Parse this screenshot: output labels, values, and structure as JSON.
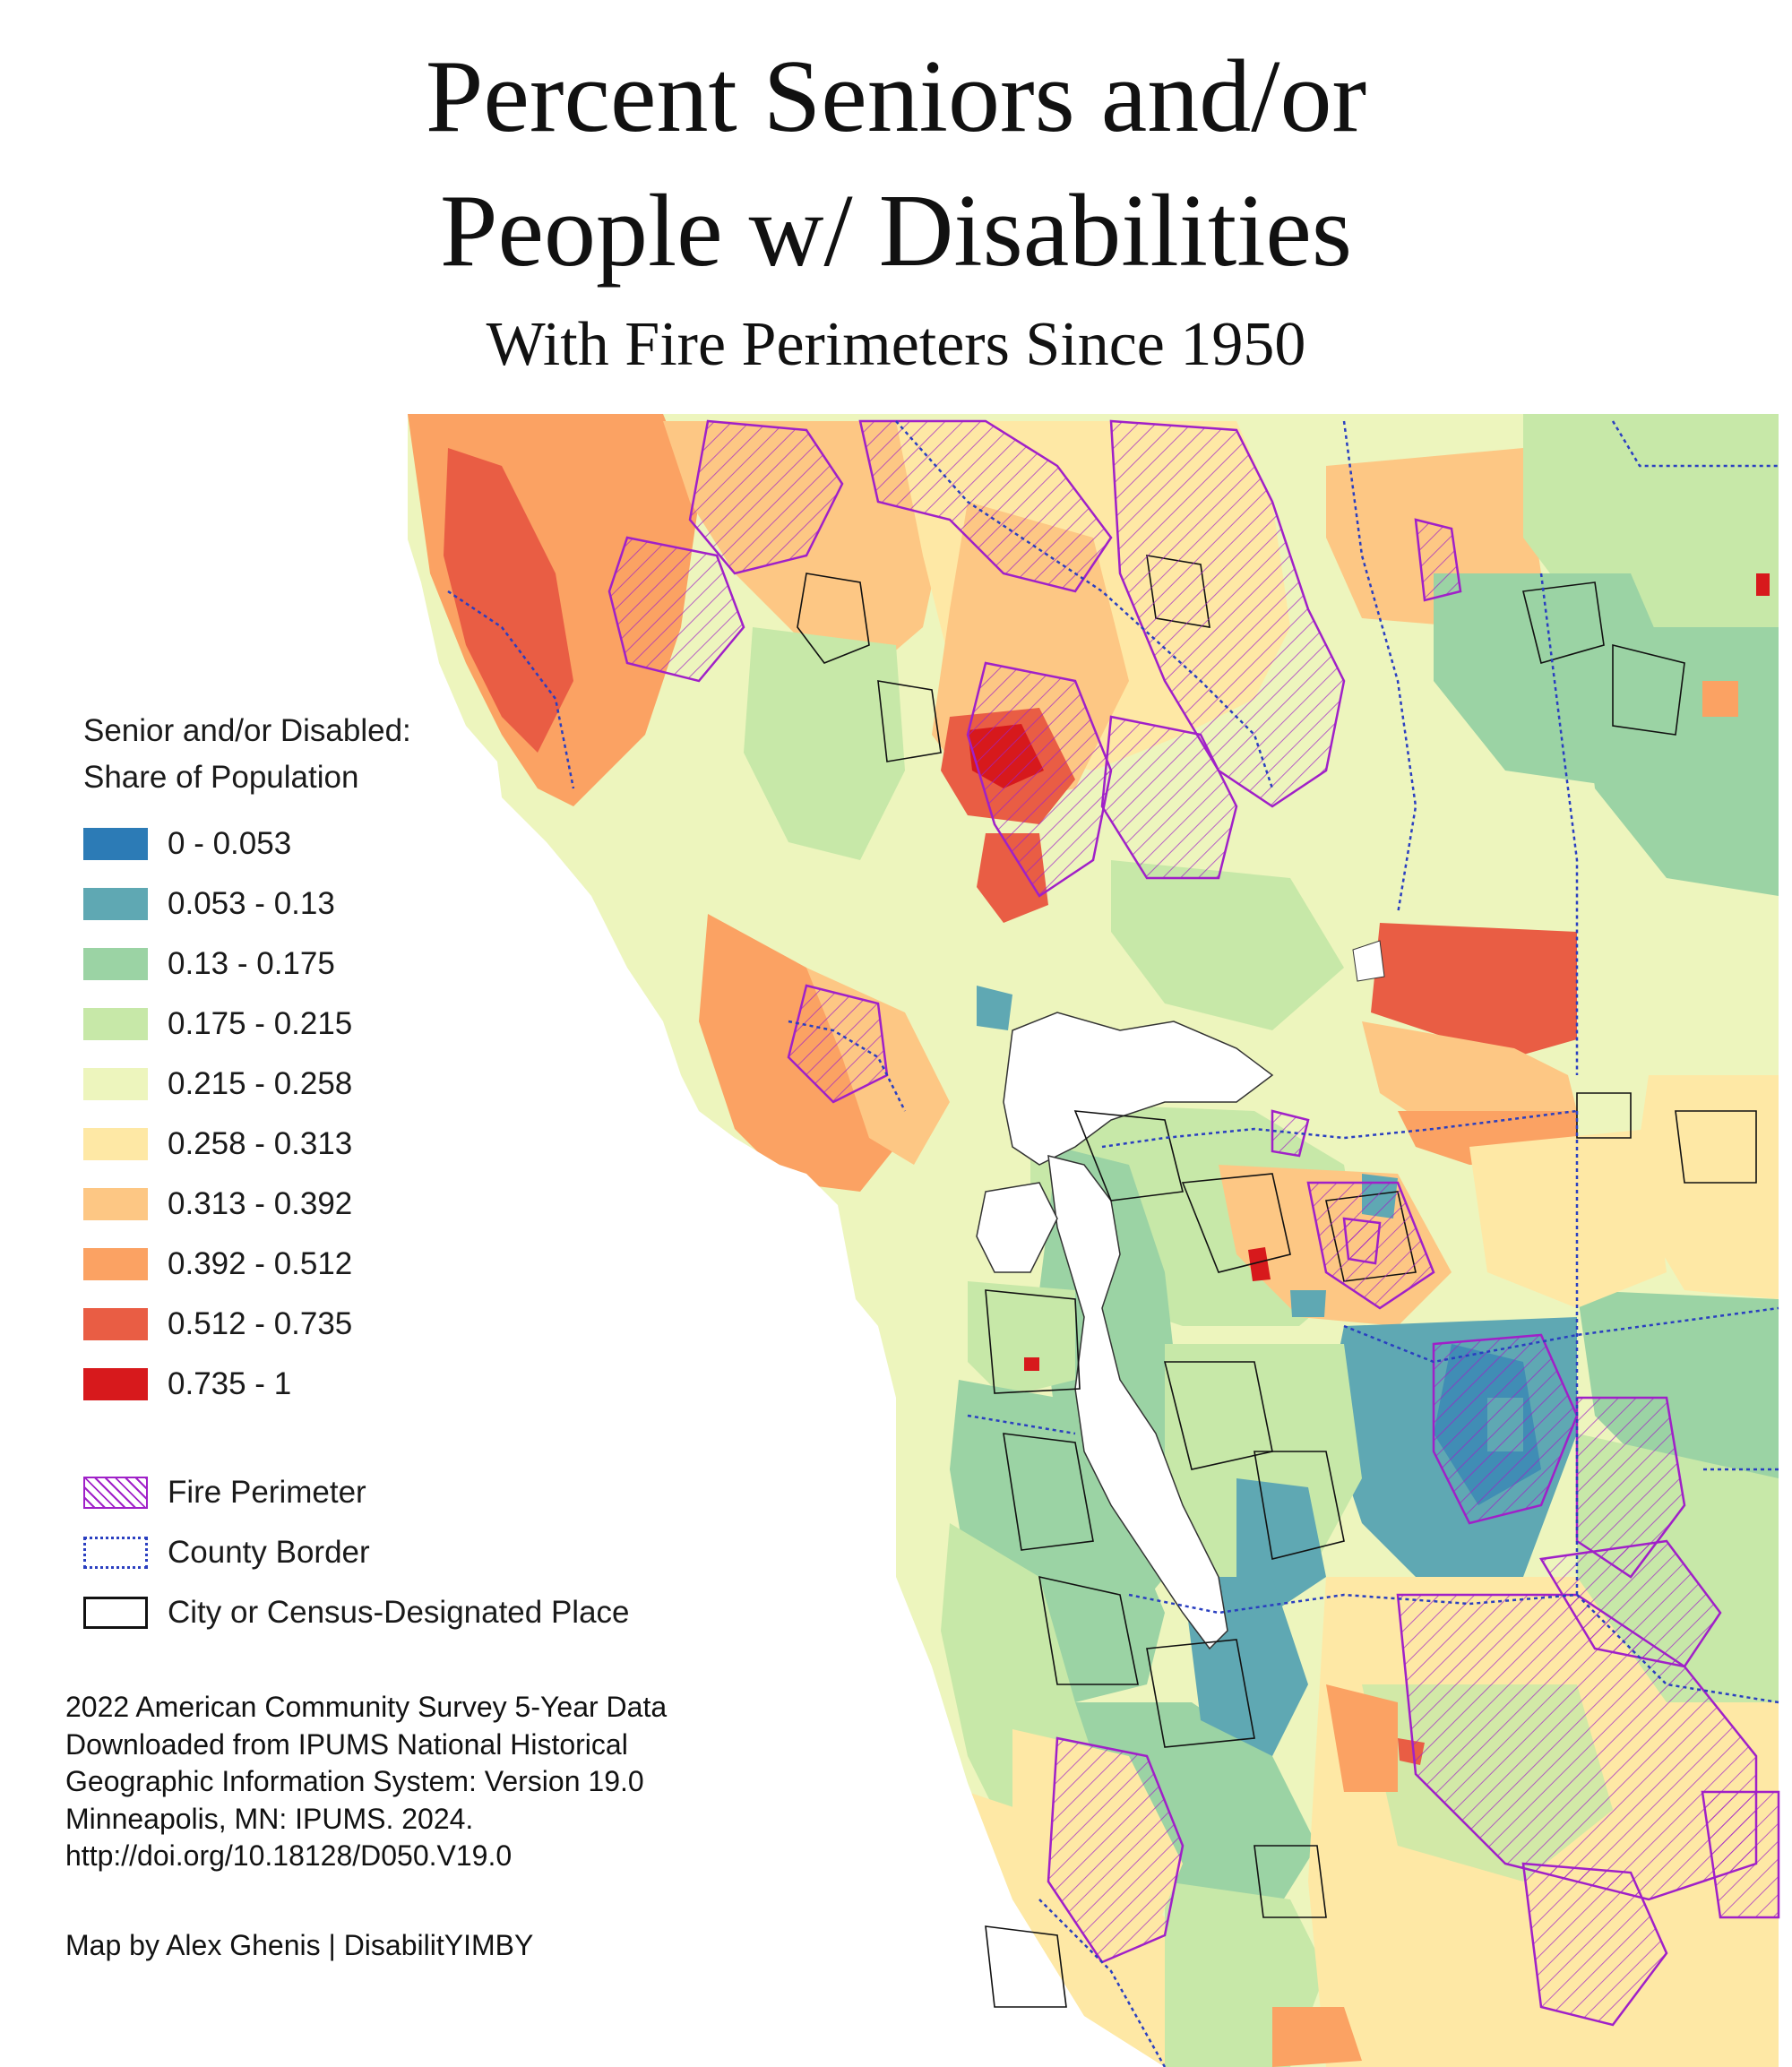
{
  "title": {
    "line1": "Percent Seniors and/or",
    "line2": "People w/ Disabilities",
    "subtitle": "With Fire Perimeters Since 1950"
  },
  "legend": {
    "heading_line1": "Senior and/or Disabled:",
    "heading_line2": "Share of Population",
    "classes": [
      {
        "label": "0 - 0.053",
        "color": "#2c7bb6"
      },
      {
        "label": "0.053 - 0.13",
        "color": "#5fa8b3"
      },
      {
        "label": "0.13 - 0.175",
        "color": "#9bd3a4"
      },
      {
        "label": "0.175 - 0.215",
        "color": "#c7e8a8"
      },
      {
        "label": "0.215 - 0.258",
        "color": "#edf5bd"
      },
      {
        "label": "0.258 - 0.313",
        "color": "#fee8a5"
      },
      {
        "label": "0.313 - 0.392",
        "color": "#fdc784"
      },
      {
        "label": "0.392 - 0.512",
        "color": "#fba263"
      },
      {
        "label": "0.512 - 0.735",
        "color": "#e95d44"
      },
      {
        "label": "0.735 - 1",
        "color": "#d7191c"
      }
    ],
    "layers": [
      {
        "label": "Fire Perimeter"
      },
      {
        "label": "County Border"
      },
      {
        "label": "City or Census-Designated Place"
      }
    ]
  },
  "source": {
    "lines": [
      "2022 American Community Survey 5-Year Data",
      "Downloaded from IPUMS National Historical",
      "Geographic Information System: Version 19.0",
      "Minneapolis, MN: IPUMS. 2024.",
      "http://doi.org/10.18128/D050.V19.0"
    ]
  },
  "credit": "Map by Alex Ghenis | DisabilitYIMBY",
  "colors": {
    "water": "#ffffff",
    "fire": "#a020c8",
    "county": "#2a3fc0",
    "city": "#111111"
  }
}
